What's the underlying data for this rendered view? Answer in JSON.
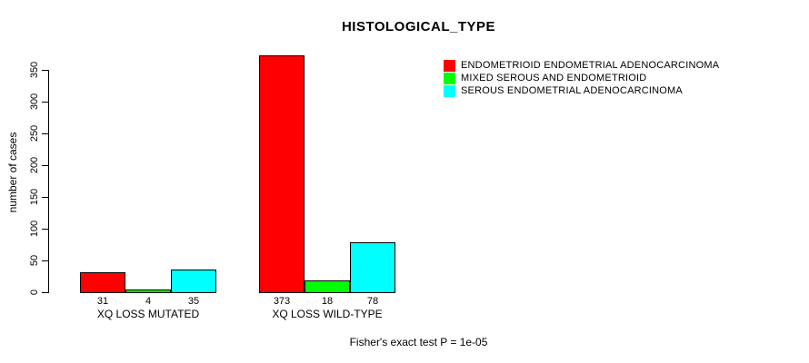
{
  "title": "HISTOLOGICAL_TYPE",
  "caption": "Fisher's exact test P = 1e-05",
  "colors": {
    "red": "#FF0000",
    "green": "#00FF00",
    "cyan": "#00FFFF",
    "axis": "#000000",
    "background": "#FFFFFF"
  },
  "chart_data": {
    "type": "bar",
    "title": "HISTOLOGICAL_TYPE",
    "xlabel": "",
    "ylabel": "number of cases",
    "ylim": [
      0,
      350
    ],
    "yticks": [
      0,
      50,
      100,
      150,
      200,
      250,
      300,
      350
    ],
    "grid": false,
    "legend_position": "top-right",
    "categories": [
      "XQ LOSS MUTATED",
      "XQ LOSS WILD-TYPE"
    ],
    "series": [
      {
        "name": "ENDOMETRIOID ENDOMETRIAL ADENOCARCINOMA",
        "color": "#FF0000",
        "values": [
          31,
          373
        ]
      },
      {
        "name": "MIXED SEROUS AND ENDOMETRIOID",
        "color": "#00FF00",
        "values": [
          4,
          18
        ]
      },
      {
        "name": "SEROUS ENDOMETRIAL ADENOCARCINOMA",
        "color": "#00FFFF",
        "values": [
          35,
          78
        ]
      }
    ],
    "bar_value_labels": [
      [
        31,
        4,
        35
      ],
      [
        373,
        18,
        78
      ]
    ],
    "annotation": "Fisher's exact test P = 1e-05"
  }
}
